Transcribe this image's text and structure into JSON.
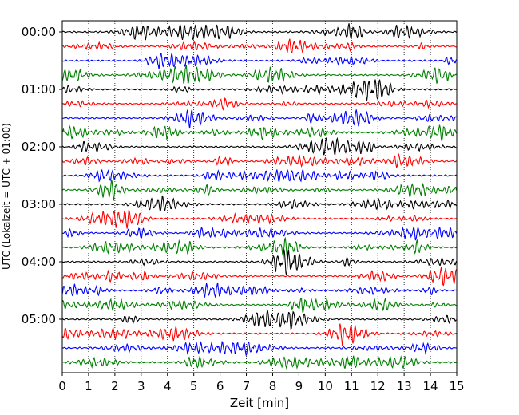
{
  "chart_data": {
    "type": "line",
    "subtype": "helicorder",
    "xlabel": "Zeit  [min]",
    "ylabel": "UTC (Lokalzeit = UTC + 01:00)",
    "xlim": [
      0,
      15
    ],
    "x_ticks": [
      0,
      1,
      2,
      3,
      4,
      5,
      6,
      7,
      8,
      9,
      10,
      11,
      12,
      13,
      14,
      15
    ],
    "y_tick_labels": [
      "00:00",
      "01:00",
      "02:00",
      "03:00",
      "04:00",
      "05:00"
    ],
    "trace_count": 24,
    "minutes_per_trace": 15,
    "trace_colors": [
      "#000000",
      "#ff0000",
      "#0000ff",
      "#008000"
    ],
    "grid": "vertical dotted at each minute",
    "series": [
      {
        "start": "00:00",
        "color": "#000000"
      },
      {
        "start": "00:15",
        "color": "#ff0000"
      },
      {
        "start": "00:30",
        "color": "#0000ff"
      },
      {
        "start": "00:45",
        "color": "#008000"
      },
      {
        "start": "01:00",
        "color": "#000000"
      },
      {
        "start": "01:15",
        "color": "#ff0000"
      },
      {
        "start": "01:30",
        "color": "#0000ff"
      },
      {
        "start": "01:45",
        "color": "#008000"
      },
      {
        "start": "02:00",
        "color": "#000000"
      },
      {
        "start": "02:15",
        "color": "#ff0000"
      },
      {
        "start": "02:30",
        "color": "#0000ff"
      },
      {
        "start": "02:45",
        "color": "#008000"
      },
      {
        "start": "03:00",
        "color": "#000000"
      },
      {
        "start": "03:15",
        "color": "#ff0000"
      },
      {
        "start": "03:30",
        "color": "#0000ff"
      },
      {
        "start": "03:45",
        "color": "#008000"
      },
      {
        "start": "04:00",
        "color": "#000000"
      },
      {
        "start": "04:15",
        "color": "#ff0000"
      },
      {
        "start": "04:30",
        "color": "#0000ff"
      },
      {
        "start": "04:45",
        "color": "#008000"
      },
      {
        "start": "05:00",
        "color": "#000000"
      },
      {
        "start": "05:15",
        "color": "#ff0000"
      },
      {
        "start": "05:30",
        "color": "#0000ff"
      },
      {
        "start": "05:45",
        "color": "#008000"
      }
    ]
  }
}
